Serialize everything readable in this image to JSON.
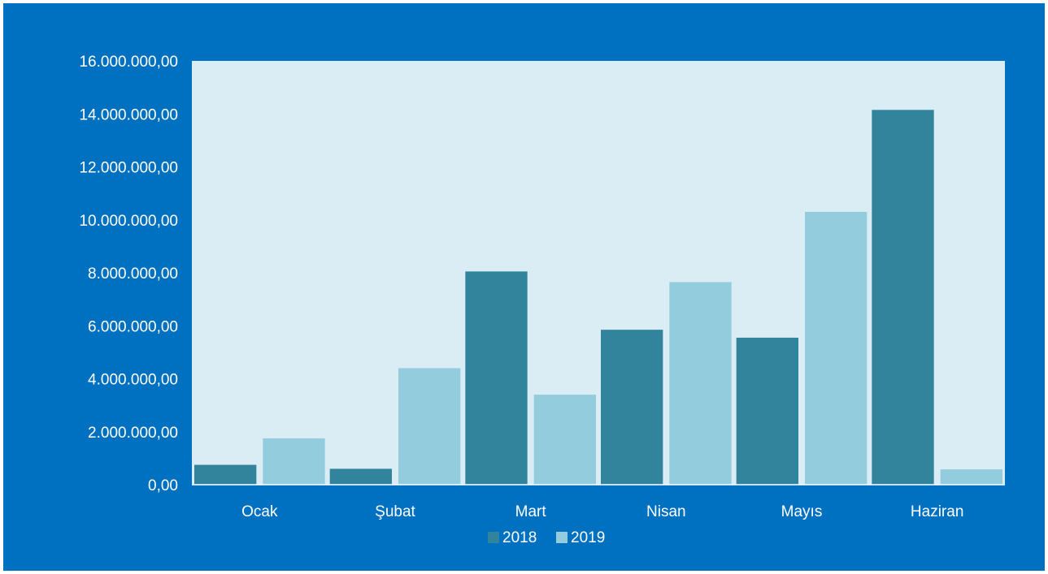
{
  "colors": {
    "background": "#0070c0",
    "plot_area": "#dbedf4",
    "text": "#ffffff",
    "series_2018": "#31849b",
    "series_2019": "#93cddd"
  },
  "chart_data": {
    "type": "bar",
    "title": "",
    "xlabel": "",
    "ylabel": "",
    "categories": [
      "Ocak",
      "Şubat",
      "Mart",
      "Nisan",
      "Mayıs",
      "Haziran"
    ],
    "series": [
      {
        "name": "2018",
        "color": "#31849b",
        "values": [
          750000,
          600000,
          8050000,
          5850000,
          5550000,
          14150000
        ]
      },
      {
        "name": "2019",
        "color": "#93cddd",
        "values": [
          1750000,
          4400000,
          3400000,
          7650000,
          10300000,
          580000
        ]
      }
    ],
    "ylim": [
      0,
      16000000
    ],
    "yticks": [
      0,
      2000000,
      4000000,
      6000000,
      8000000,
      10000000,
      12000000,
      14000000,
      16000000
    ],
    "ytick_labels": [
      "0,00",
      "2.000.000,00",
      "4.000.000,00",
      "6.000.000,00",
      "8.000.000,00",
      "10.000.000,00",
      "12.000.000,00",
      "14.000.000,00",
      "16.000.000,00"
    ],
    "grid": false,
    "legend_position": "bottom"
  }
}
